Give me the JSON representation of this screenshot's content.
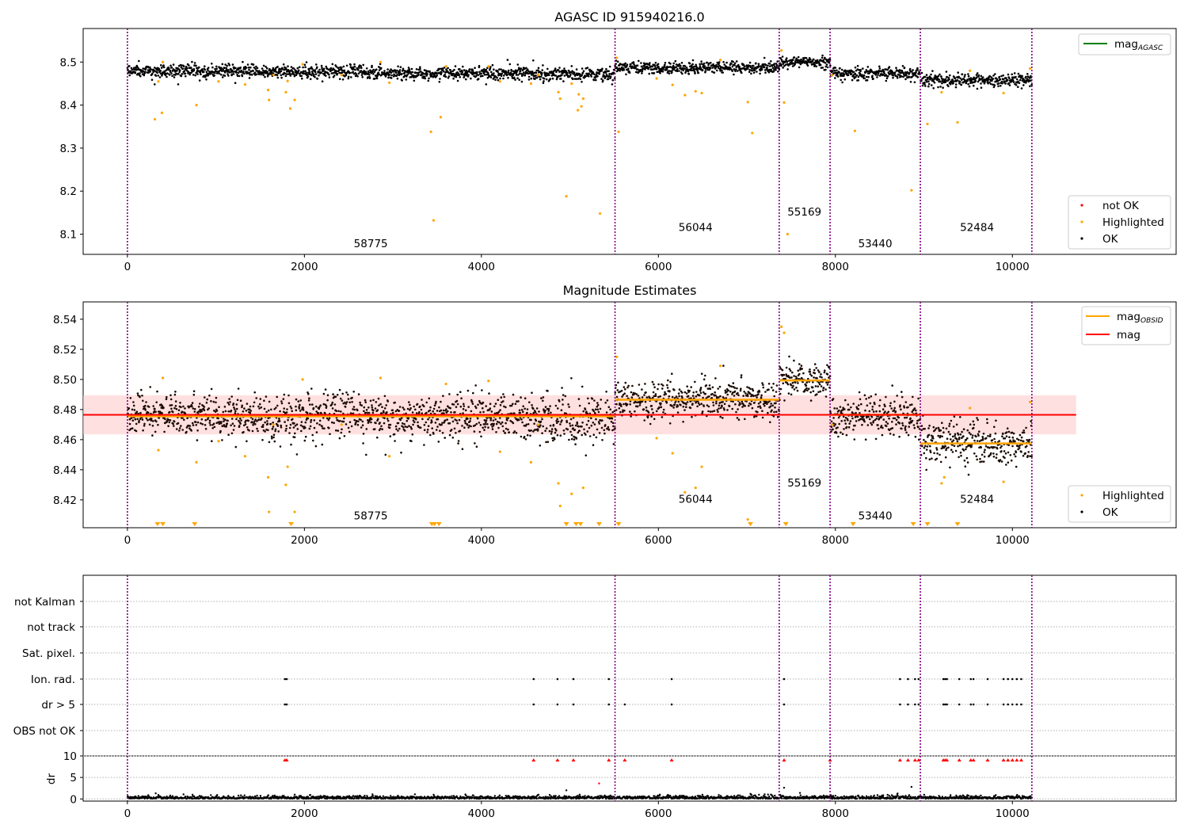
{
  "colors": {
    "ok": "#000000",
    "highlighted": "#ffa500",
    "not_ok": "#ff0000",
    "mag_agasc": "#008000",
    "mag_obsid": "#ffa500",
    "mag": "#ff0000",
    "band": "#ffcccc",
    "obs_boundary": "#800080",
    "grid": "#b0b0b0"
  },
  "chart_data": [
    {
      "type": "scatter",
      "title": "AGASC ID 915940216.0",
      "xlabel": "",
      "ylabel": "",
      "xlim": [
        -500,
        11850
      ],
      "ylim": [
        8.053,
        8.578
      ],
      "xticks": [
        0,
        2000,
        4000,
        6000,
        8000,
        10000
      ],
      "xtick_labels": [
        "0",
        "2000",
        "4000",
        "6000",
        "8000",
        "10000"
      ],
      "yticks": [
        8.1,
        8.2,
        8.3,
        8.4,
        8.5
      ],
      "ytick_labels": [
        "8.1",
        "8.2",
        "8.3",
        "8.4",
        "8.5"
      ],
      "obs_boundaries": [
        0,
        5510,
        7365,
        7940,
        8960,
        10220
      ],
      "obsids": [
        {
          "label": "58775",
          "x": 2750,
          "y": 8.07
        },
        {
          "label": "56044",
          "x": 6420,
          "y": 8.107
        },
        {
          "label": "55169",
          "x": 7650,
          "y": 8.143
        },
        {
          "label": "53440",
          "x": 8450,
          "y": 8.07
        },
        {
          "label": "52484",
          "x": 9600,
          "y": 8.107
        }
      ],
      "ok_segments": [
        {
          "x0": 0,
          "x1": 5510,
          "mean": 8.476,
          "spread": 0.009,
          "slope": -0.01
        },
        {
          "x0": 5510,
          "x1": 7365,
          "mean": 8.487,
          "spread": 0.008,
          "slope": 0.0
        },
        {
          "x0": 7365,
          "x1": 7940,
          "mean": 8.499,
          "spread": 0.007,
          "slope": 0.0
        },
        {
          "x0": 7940,
          "x1": 8960,
          "mean": 8.474,
          "spread": 0.009,
          "slope": 0.0
        },
        {
          "x0": 8960,
          "x1": 10220,
          "mean": 8.457,
          "spread": 0.009,
          "slope": 0.0
        }
      ],
      "highlighted_points": [
        [
          310,
          8.367
        ],
        [
          390,
          8.382
        ],
        [
          350,
          8.455
        ],
        [
          400,
          8.5
        ],
        [
          780,
          8.4
        ],
        [
          1030,
          8.455
        ],
        [
          1330,
          8.448
        ],
        [
          1590,
          8.435
        ],
        [
          1600,
          8.412
        ],
        [
          1650,
          8.47
        ],
        [
          1790,
          8.43
        ],
        [
          1810,
          8.456
        ],
        [
          1840,
          8.392
        ],
        [
          1890,
          8.412
        ],
        [
          1980,
          8.495
        ],
        [
          2420,
          8.47
        ],
        [
          2860,
          8.5
        ],
        [
          2960,
          8.452
        ],
        [
          3430,
          8.338
        ],
        [
          3460,
          8.132
        ],
        [
          3540,
          8.372
        ],
        [
          3600,
          8.49
        ],
        [
          4080,
          8.49
        ],
        [
          4210,
          8.455
        ],
        [
          4560,
          8.45
        ],
        [
          4640,
          8.47
        ],
        [
          4870,
          8.43
        ],
        [
          4890,
          8.415
        ],
        [
          4960,
          8.188
        ],
        [
          5020,
          8.45
        ],
        [
          5090,
          8.388
        ],
        [
          5100,
          8.425
        ],
        [
          5130,
          8.397
        ],
        [
          5150,
          8.415
        ],
        [
          5340,
          8.148
        ],
        [
          5530,
          8.51
        ],
        [
          5550,
          8.338
        ],
        [
          5980,
          8.462
        ],
        [
          6160,
          8.447
        ],
        [
          6300,
          8.423
        ],
        [
          6420,
          8.432
        ],
        [
          6490,
          8.428
        ],
        [
          7010,
          8.407
        ],
        [
          7060,
          8.335
        ],
        [
          6700,
          8.505
        ],
        [
          7390,
          8.527
        ],
        [
          7420,
          8.406
        ],
        [
          7460,
          8.1
        ],
        [
          7960,
          8.47
        ],
        [
          8220,
          8.34
        ],
        [
          8860,
          8.202
        ],
        [
          9040,
          8.356
        ],
        [
          9200,
          8.43
        ],
        [
          9380,
          8.36
        ],
        [
          9520,
          8.48
        ],
        [
          9900,
          8.428
        ],
        [
          10200,
          8.485
        ]
      ],
      "legend_upper": [
        {
          "label": "mag$_{AGASC}$",
          "text": "mag",
          "sub": "AGASC",
          "color": "#008000"
        }
      ],
      "legend_lower": [
        {
          "label": "not OK",
          "color": "#ff0000"
        },
        {
          "label": "Highlighted",
          "color": "#ffa500"
        },
        {
          "label": "OK",
          "color": "#000000"
        }
      ]
    },
    {
      "type": "scatter",
      "title": "Magnitude Estimates",
      "xlabel": "",
      "ylabel": "",
      "xlim": [
        -500,
        11850
      ],
      "ylim": [
        8.4015,
        8.5515
      ],
      "xticks": [
        0,
        2000,
        4000,
        6000,
        8000,
        10000
      ],
      "xtick_labels": [
        "0",
        "2000",
        "4000",
        "6000",
        "8000",
        "10000"
      ],
      "yticks": [
        8.42,
        8.44,
        8.46,
        8.48,
        8.5,
        8.52,
        8.54
      ],
      "ytick_labels": [
        "8.42",
        "8.44",
        "8.46",
        "8.48",
        "8.50",
        "8.52",
        "8.54"
      ],
      "obs_boundaries": [
        0,
        5510,
        7365,
        7940,
        8960,
        10220
      ],
      "obsids": [
        {
          "label": "58775",
          "x": 2750,
          "y": 8.407
        },
        {
          "label": "56044",
          "x": 6420,
          "y": 8.418
        },
        {
          "label": "55169",
          "x": 7650,
          "y": 8.429
        },
        {
          "label": "53440",
          "x": 8450,
          "y": 8.407
        },
        {
          "label": "52484",
          "x": 9600,
          "y": 8.418
        }
      ],
      "mag": 8.4765,
      "mag_band": [
        8.4635,
        8.4895
      ],
      "mag_line_x": [
        -500,
        10720
      ],
      "mag_obsid": [
        {
          "x0": 0,
          "x1": 5510,
          "value": 8.4755
        },
        {
          "x0": 5510,
          "x1": 7365,
          "value": 8.4865
        },
        {
          "x0": 7365,
          "x1": 7940,
          "value": 8.4993
        },
        {
          "x0": 7940,
          "x1": 8960,
          "value": 8.4765
        },
        {
          "x0": 8960,
          "x1": 10220,
          "value": 8.4575
        }
      ],
      "ok_segments": [
        {
          "x0": 0,
          "x1": 5510,
          "mean": 8.4755,
          "spread": 0.0085,
          "slope": -0.002
        },
        {
          "x0": 5510,
          "x1": 7365,
          "mean": 8.4865,
          "spread": 0.0075,
          "slope": 0.0
        },
        {
          "x0": 7365,
          "x1": 7940,
          "mean": 8.4993,
          "spread": 0.0065,
          "slope": 0.0
        },
        {
          "x0": 7940,
          "x1": 8960,
          "mean": 8.4755,
          "spread": 0.0085,
          "slope": 0.0
        },
        {
          "x0": 8960,
          "x1": 10220,
          "mean": 8.4575,
          "spread": 0.0085,
          "slope": 0.0
        }
      ],
      "highlighted_points": [
        [
          400,
          8.501
        ],
        [
          350,
          8.453
        ],
        [
          780,
          8.445
        ],
        [
          1030,
          8.459
        ],
        [
          1330,
          8.449
        ],
        [
          1590,
          8.435
        ],
        [
          1600,
          8.412
        ],
        [
          1650,
          8.47
        ],
        [
          1790,
          8.43
        ],
        [
          1810,
          8.442
        ],
        [
          1890,
          8.412
        ],
        [
          1980,
          8.5
        ],
        [
          2420,
          8.47
        ],
        [
          2860,
          8.501
        ],
        [
          2960,
          8.449
        ],
        [
          3600,
          8.497
        ],
        [
          4080,
          8.499
        ],
        [
          4210,
          8.452
        ],
        [
          4560,
          8.445
        ],
        [
          4640,
          8.47
        ],
        [
          4870,
          8.431
        ],
        [
          4890,
          8.416
        ],
        [
          5020,
          8.424
        ],
        [
          5150,
          8.428
        ],
        [
          5530,
          8.515
        ],
        [
          5980,
          8.461
        ],
        [
          6160,
          8.451
        ],
        [
          6300,
          8.425
        ],
        [
          6420,
          8.428
        ],
        [
          6490,
          8.442
        ],
        [
          6700,
          8.509
        ],
        [
          7010,
          8.407
        ],
        [
          7390,
          8.535
        ],
        [
          7420,
          8.531
        ],
        [
          7960,
          8.47
        ],
        [
          9200,
          8.431
        ],
        [
          9230,
          8.435
        ],
        [
          9520,
          8.481
        ],
        [
          9900,
          8.432
        ],
        [
          10200,
          8.485
        ]
      ],
      "clipped_points_x": [
        340,
        400,
        760,
        1850,
        3440,
        3470,
        3520,
        4960,
        5070,
        5120,
        5330,
        5550,
        7040,
        7440,
        8200,
        8880,
        9040,
        9380
      ],
      "legend_upper": [
        {
          "label": "mag$_{OBSID}$",
          "text": "mag",
          "sub": "OBSID",
          "color": "#ffa500"
        },
        {
          "label": "mag",
          "text": "mag",
          "sub": "",
          "color": "#ff0000"
        }
      ],
      "legend_lower": [
        {
          "label": "Highlighted",
          "color": "#ffa500"
        },
        {
          "label": "OK",
          "color": "#000000"
        }
      ]
    },
    {
      "type": "scatter",
      "title": "",
      "xlabel": "",
      "ylabel": "",
      "xlim": [
        -500,
        11850
      ],
      "categories": [
        "not Kalman",
        "not track",
        "Sat. pixel.",
        "Ion. rad.",
        "dr > 5",
        "OBS not OK"
      ],
      "obs_boundaries": [
        0,
        5510,
        7365,
        7940,
        8960,
        10220
      ],
      "flag_points": {
        "Ion. rad.": [
          1780,
          1800,
          4590,
          4860,
          5040,
          5440,
          6150,
          7420,
          8730,
          8820,
          8900,
          8940,
          9220,
          9240,
          9260,
          9400,
          9530,
          9560,
          9720,
          9900,
          9950,
          10000,
          10050,
          10100
        ],
        "dr > 5": [
          1780,
          1800,
          4590,
          4860,
          5040,
          5440,
          5620,
          6150,
          7420,
          8730,
          8820,
          8900,
          8940,
          9220,
          9240,
          9260,
          9400,
          9530,
          9560,
          9720,
          9900,
          9950,
          10000,
          10050,
          10100
        ],
        "not Kalman": [
          7940
        ]
      }
    },
    {
      "type": "scatter",
      "title": "",
      "xlabel": "",
      "ylabel": "dr",
      "xlim": [
        -500,
        11850
      ],
      "ylim": [
        -0.5,
        10
      ],
      "xticks": [
        0,
        2000,
        4000,
        6000,
        8000,
        10000
      ],
      "xtick_labels": [
        "0",
        "2000",
        "4000",
        "6000",
        "8000",
        "10000"
      ],
      "yticks": [
        0,
        5,
        10
      ],
      "ytick_labels": [
        "0",
        "5",
        "10"
      ],
      "obs_boundaries": [
        0,
        5510,
        7365,
        7940,
        8960,
        10220
      ],
      "clipped_points_x": [
        1780,
        1800,
        4590,
        4860,
        5040,
        5440,
        5620,
        6150,
        7420,
        7940,
        8730,
        8820,
        8900,
        8940,
        9220,
        9240,
        9260,
        9400,
        9530,
        9560,
        9720,
        9900,
        9950,
        10000,
        10050,
        10100
      ],
      "outlier_points": [
        [
          5330,
          3.6
        ],
        [
          4960,
          2.0
        ],
        [
          7420,
          2.6
        ],
        [
          8860,
          2.8
        ],
        [
          8700,
          1.2
        ],
        [
          7600,
          1.4
        ],
        [
          7040,
          1.2
        ],
        [
          320,
          1.3
        ],
        [
          5110,
          1.0
        ]
      ]
    }
  ]
}
